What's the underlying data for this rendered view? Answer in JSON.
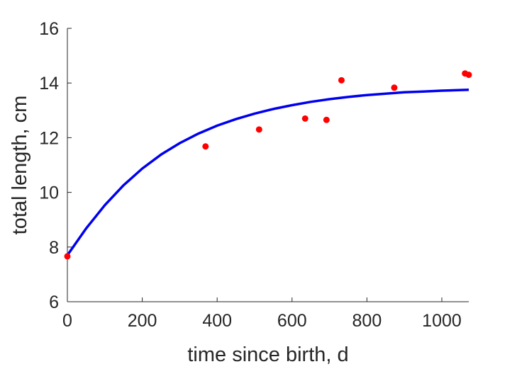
{
  "chart_data": {
    "type": "scatter",
    "xlabel": "time since birth, d",
    "ylabel": "total length, cm",
    "xlim": [
      0,
      1072
    ],
    "ylim": [
      6,
      16
    ],
    "xticks": [
      0,
      200,
      400,
      600,
      800,
      1000
    ],
    "yticks": [
      6,
      8,
      10,
      12,
      14,
      16
    ],
    "xtick_labels": [
      "0",
      "200",
      "400",
      "600",
      "800",
      "1000"
    ],
    "ytick_labels": [
      "6",
      "8",
      "10",
      "12",
      "14",
      "16"
    ],
    "grid": false,
    "series": [
      {
        "kind": "scatter",
        "color": "#ff0000",
        "points": [
          [
            0,
            7.66
          ],
          [
            369,
            11.68
          ],
          [
            512,
            12.3
          ],
          [
            635,
            12.7
          ],
          [
            692,
            12.65
          ],
          [
            732,
            14.1
          ],
          [
            873,
            13.83
          ],
          [
            1062,
            14.35
          ],
          [
            1072,
            14.3
          ]
        ]
      },
      {
        "kind": "line",
        "color": "#0000ee",
        "points": [
          [
            0,
            7.7
          ],
          [
            50,
            8.68
          ],
          [
            100,
            9.53
          ],
          [
            150,
            10.26
          ],
          [
            200,
            10.87
          ],
          [
            250,
            11.38
          ],
          [
            300,
            11.8
          ],
          [
            350,
            12.15
          ],
          [
            400,
            12.44
          ],
          [
            450,
            12.68
          ],
          [
            500,
            12.88
          ],
          [
            550,
            13.05
          ],
          [
            600,
            13.19
          ],
          [
            650,
            13.31
          ],
          [
            700,
            13.41
          ],
          [
            750,
            13.49
          ],
          [
            800,
            13.56
          ],
          [
            850,
            13.61
          ],
          [
            900,
            13.66
          ],
          [
            950,
            13.69
          ],
          [
            1000,
            13.72
          ],
          [
            1072,
            13.75
          ]
        ]
      }
    ]
  }
}
